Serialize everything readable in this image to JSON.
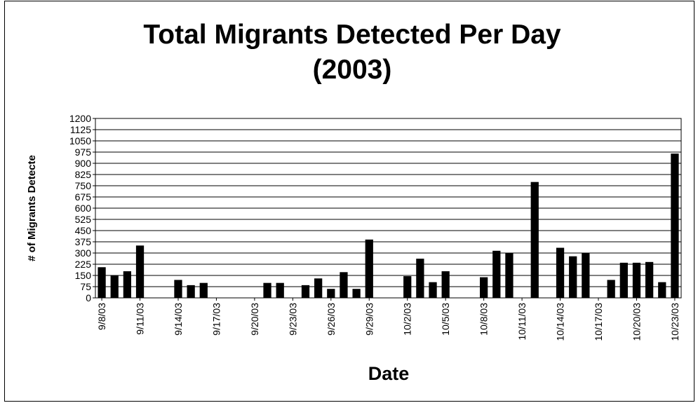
{
  "chart_data": {
    "type": "bar",
    "title": [
      "Total Migrants Detected Per Day",
      "(2003)"
    ],
    "xlabel": "Date",
    "ylabel": "# of Migrants Detecte",
    "ylim": [
      0,
      1200
    ],
    "y_ticks": [
      0,
      75,
      150,
      225,
      300,
      375,
      450,
      525,
      600,
      675,
      750,
      825,
      900,
      975,
      1050,
      1125,
      1200
    ],
    "x_tick_labels": [
      "9/8/03",
      "9/11/03",
      "9/14/03",
      "9/17/03",
      "9/20/03",
      "9/23/03",
      "9/26/03",
      "9/29/03",
      "10/2/03",
      "10/5/03",
      "10/8/03",
      "10/11/03",
      "10/14/03",
      "10/17/03",
      "10/20/03",
      "10/23/03"
    ],
    "grid": true,
    "bar_color": "#000000",
    "categories": [
      "9/8/03",
      "9/9/03",
      "9/10/03",
      "9/11/03",
      "9/12/03",
      "9/13/03",
      "9/14/03",
      "9/15/03",
      "9/16/03",
      "9/17/03",
      "9/18/03",
      "9/19/03",
      "9/20/03",
      "9/21/03",
      "9/22/03",
      "9/23/03",
      "9/24/03",
      "9/25/03",
      "9/26/03",
      "9/27/03",
      "9/28/03",
      "9/29/03",
      "9/30/03",
      "10/1/03",
      "10/2/03",
      "10/3/03",
      "10/4/03",
      "10/5/03",
      "10/6/03",
      "10/7/03",
      "10/8/03",
      "10/9/03",
      "10/10/03",
      "10/11/03",
      "10/12/03",
      "10/13/03",
      "10/14/03",
      "10/15/03",
      "10/16/03",
      "10/17/03",
      "10/18/03",
      "10/19/03",
      "10/20/03",
      "10/21/03",
      "10/22/03",
      "10/23/03"
    ],
    "values": [
      205,
      150,
      178,
      350,
      0,
      0,
      120,
      85,
      100,
      0,
      0,
      0,
      0,
      100,
      100,
      0,
      85,
      130,
      60,
      172,
      60,
      390,
      0,
      0,
      145,
      262,
      105,
      178,
      0,
      0,
      138,
      315,
      298,
      0,
      775,
      0,
      335,
      278,
      298,
      0,
      120,
      235,
      235,
      240,
      105,
      965
    ]
  }
}
